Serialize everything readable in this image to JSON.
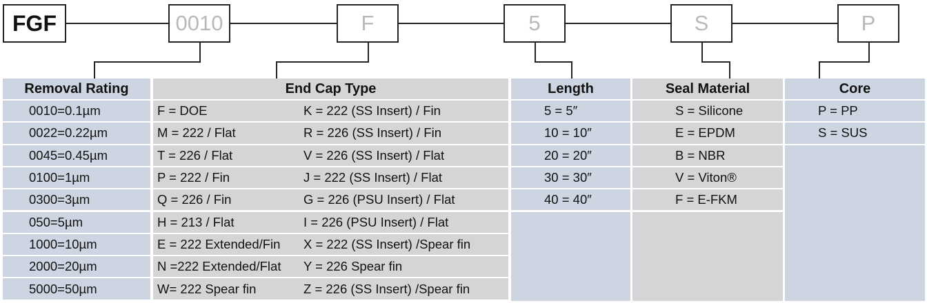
{
  "code_boxes": [
    "FGF",
    "0010",
    "F",
    "5",
    "S",
    "P"
  ],
  "headers": {
    "removal": "Removal Rating",
    "endcap": "End Cap Type",
    "length": "Length",
    "seal": "Seal Material",
    "core": "Core"
  },
  "removal": [
    "0010=0.1µm",
    "0022=0.22µm",
    "0045=0.45µm",
    "0100=1µm",
    "0300=3µm",
    "050=5µm",
    "1000=10µm",
    "2000=20µm",
    "5000=50µm"
  ],
  "endcap_left": [
    "F = DOE",
    "M = 222 / Flat",
    "T = 226 / Flat",
    "P = 222 / Fin",
    "Q = 226 / Fin",
    "H = 213 / Flat",
    "E = 222 Extended/Fin",
    "N =222 Extended/Flat",
    "W= 222 Spear fin"
  ],
  "endcap_right": [
    "K = 222 (SS Insert) / Fin",
    "R = 226 (SS Insert) / Fin",
    "V = 226 (SS Insert) / Flat",
    "J  = 222 (SS Insert) / Flat",
    "G = 226 (PSU Insert) / Flat",
    "I = 226 (PSU Insert) / Flat",
    "X  = 222 (SS Insert) /Spear fin",
    "Y = 226 Spear fin",
    "Z = 226 (SS Insert) /Spear fin"
  ],
  "length": [
    "5 = 5″",
    "10 = 10″",
    "20 = 20″",
    "30 = 30″",
    "40 = 40″"
  ],
  "seal": [
    "S = Silicone",
    "E = EPDM",
    "B = NBR",
    "V = Viton®",
    "F = E-FKM"
  ],
  "core": [
    "P = PP",
    "S = SUS"
  ],
  "colors": {
    "blue": "#cdd5e3",
    "gray": "#d5d5d7",
    "placeholder_text": "#b9b9b9"
  }
}
